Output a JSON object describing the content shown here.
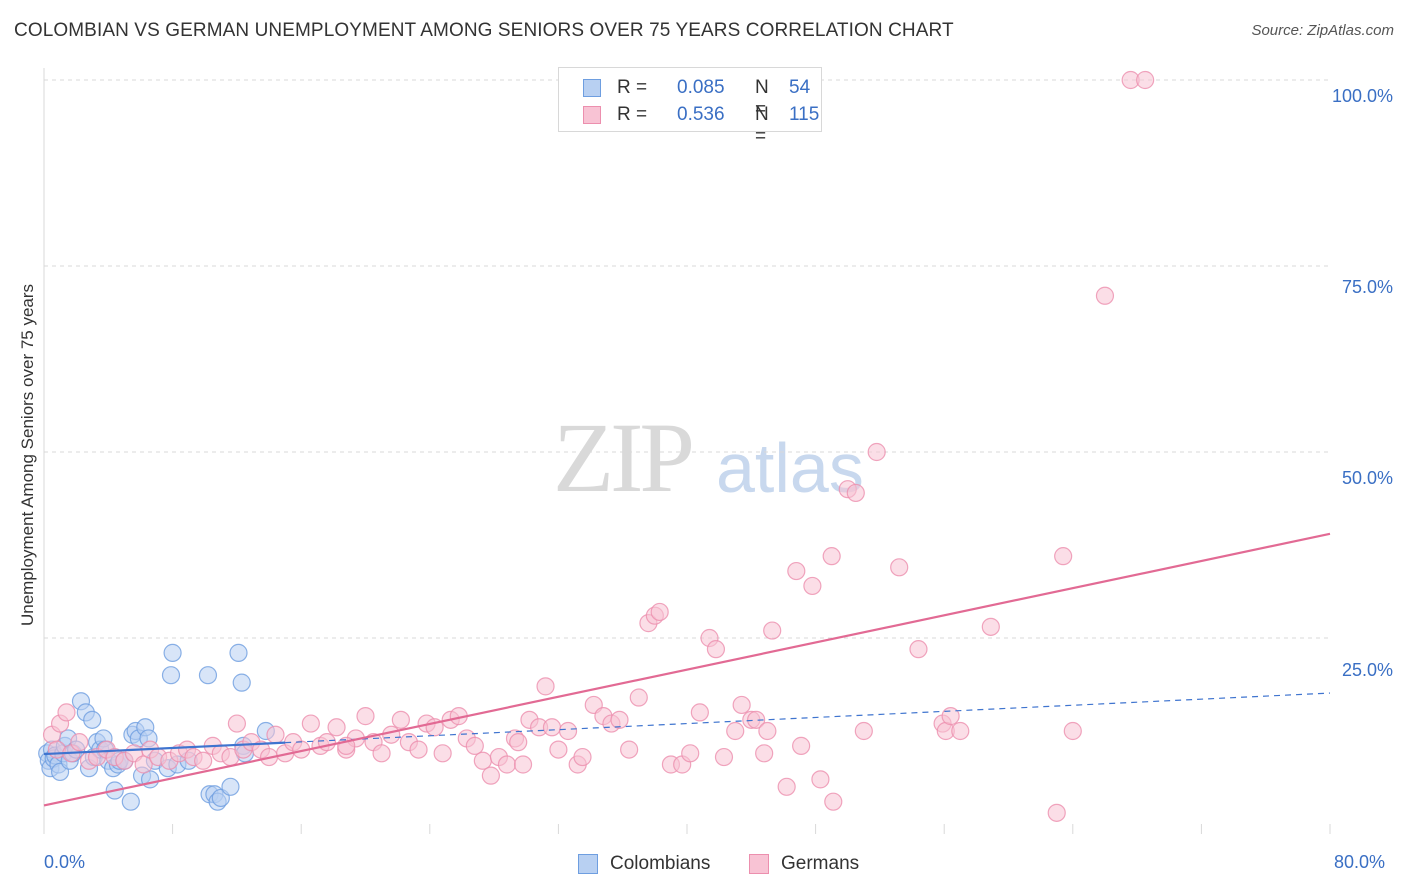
{
  "title": "COLOMBIAN VS GERMAN UNEMPLOYMENT AMONG SENIORS OVER 75 YEARS CORRELATION CHART",
  "source": "Source: ZipAtlas.com",
  "watermark": {
    "zip": "ZIP",
    "atlas": "atlas"
  },
  "stats": {
    "colombians": {
      "r_label": "R =",
      "r": "0.085",
      "n_label": "N =",
      "n": "54"
    },
    "germans": {
      "r_label": "R =",
      "r": "0.536",
      "n_label": "N =",
      "n": "115"
    }
  },
  "legend": {
    "colombians": "Colombians",
    "germans": "Germans"
  },
  "colors": {
    "blue_fill": "#b8d0f2",
    "blue_stroke": "#6e9ee0",
    "blue_line": "#3f74cf",
    "pink_fill": "#f8c3d4",
    "pink_stroke": "#ec8fae",
    "pink_line": "#e26a94",
    "grid": "#d9d9d9",
    "tick_text": "#3a6fc4"
  },
  "chart_data": {
    "type": "scatter",
    "title": "COLOMBIAN VS GERMAN UNEMPLOYMENT AMONG SENIORS OVER 75 YEARS CORRELATION CHART",
    "xlabel": "",
    "ylabel": "Unemployment Among Seniors over 75 years",
    "xlim": [
      0,
      80
    ],
    "ylim": [
      0,
      100
    ],
    "x_tick_labels": [
      "0.0%",
      "80.0%"
    ],
    "y_tick_labels": [
      "100.0%",
      "75.0%",
      "50.0%",
      "25.0%"
    ],
    "y_ticks": [
      100,
      75,
      50,
      25
    ],
    "x_gridlines": [
      0,
      8,
      16,
      24,
      32,
      40,
      48,
      56,
      64,
      72,
      80
    ],
    "grid": true,
    "legend_position": "bottom-center",
    "series": [
      {
        "name": "Colombians",
        "points": [
          [
            0.2,
            9.5
          ],
          [
            0.3,
            8.5
          ],
          [
            0.4,
            7.5
          ],
          [
            0.5,
            10
          ],
          [
            0.6,
            8.8
          ],
          [
            0.7,
            9.2
          ],
          [
            0.9,
            8
          ],
          [
            1.0,
            7
          ],
          [
            1.2,
            9.5
          ],
          [
            1.3,
            10.5
          ],
          [
            1.5,
            11.5
          ],
          [
            1.6,
            8.5
          ],
          [
            1.8,
            9.5
          ],
          [
            2.0,
            10
          ],
          [
            2.3,
            16.5
          ],
          [
            2.6,
            15
          ],
          [
            2.8,
            7.5
          ],
          [
            3.0,
            14
          ],
          [
            3.1,
            9
          ],
          [
            3.3,
            11
          ],
          [
            3.5,
            10
          ],
          [
            3.7,
            11.5
          ],
          [
            3.8,
            10
          ],
          [
            4.0,
            8.5
          ],
          [
            4.3,
            7.5
          ],
          [
            4.4,
            4.5
          ],
          [
            4.6,
            8
          ],
          [
            4.7,
            8.5
          ],
          [
            5.0,
            8.5
          ],
          [
            5.4,
            3
          ],
          [
            5.5,
            12
          ],
          [
            5.7,
            12.5
          ],
          [
            5.9,
            11.5
          ],
          [
            6.1,
            6.5
          ],
          [
            6.3,
            13
          ],
          [
            6.5,
            11.5
          ],
          [
            6.6,
            6
          ],
          [
            6.9,
            8.5
          ],
          [
            7.7,
            7.5
          ],
          [
            7.9,
            20
          ],
          [
            8.0,
            23
          ],
          [
            8.3,
            8
          ],
          [
            9.0,
            8.5
          ],
          [
            10.2,
            20
          ],
          [
            10.3,
            4
          ],
          [
            10.6,
            4
          ],
          [
            10.8,
            3
          ],
          [
            11.0,
            3.5
          ],
          [
            11.6,
            5
          ],
          [
            12.1,
            23
          ],
          [
            12.3,
            19
          ],
          [
            12.4,
            10.5
          ],
          [
            12.5,
            9.5
          ],
          [
            13.8,
            12.5
          ]
        ],
        "trend": {
          "solid_x": [
            0,
            15
          ],
          "dashed_x": [
            15,
            80
          ],
          "y_at_x0": 9.4,
          "y_at_x80": 17.6
        }
      },
      {
        "name": "Germans",
        "points": [
          [
            0.5,
            12
          ],
          [
            0.8,
            10
          ],
          [
            1.0,
            13.5
          ],
          [
            1.4,
            15
          ],
          [
            1.7,
            9.5
          ],
          [
            2.2,
            11
          ],
          [
            2.8,
            8.5
          ],
          [
            3.3,
            9
          ],
          [
            3.9,
            10
          ],
          [
            4.4,
            9
          ],
          [
            5.0,
            8.5
          ],
          [
            5.6,
            9.5
          ],
          [
            6.2,
            8
          ],
          [
            6.6,
            10
          ],
          [
            7.1,
            9
          ],
          [
            7.8,
            8.5
          ],
          [
            8.4,
            9.5
          ],
          [
            8.9,
            10
          ],
          [
            9.3,
            9
          ],
          [
            9.9,
            8.5
          ],
          [
            10.5,
            10.5
          ],
          [
            11.0,
            9.5
          ],
          [
            11.6,
            9
          ],
          [
            12.0,
            13.5
          ],
          [
            12.4,
            10
          ],
          [
            12.9,
            11
          ],
          [
            13.5,
            10
          ],
          [
            14.0,
            9
          ],
          [
            14.4,
            12
          ],
          [
            15.0,
            9.5
          ],
          [
            15.5,
            11
          ],
          [
            16.0,
            10
          ],
          [
            16.6,
            13.5
          ],
          [
            17.2,
            10.5
          ],
          [
            17.6,
            11
          ],
          [
            18.2,
            13
          ],
          [
            18.8,
            10
          ],
          [
            19.4,
            11.5
          ],
          [
            20.0,
            14.5
          ],
          [
            20.5,
            11
          ],
          [
            21.0,
            9.5
          ],
          [
            21.6,
            12
          ],
          [
            22.2,
            14
          ],
          [
            22.7,
            11
          ],
          [
            23.3,
            10
          ],
          [
            23.8,
            13.5
          ],
          [
            24.3,
            13
          ],
          [
            24.8,
            9.5
          ],
          [
            25.3,
            14
          ],
          [
            25.8,
            14.5
          ],
          [
            26.3,
            11.5
          ],
          [
            26.8,
            10.5
          ],
          [
            27.3,
            8.5
          ],
          [
            27.8,
            6.5
          ],
          [
            28.3,
            9
          ],
          [
            28.8,
            8
          ],
          [
            29.3,
            11.5
          ],
          [
            29.8,
            8
          ],
          [
            30.2,
            14
          ],
          [
            30.8,
            13
          ],
          [
            31.2,
            18.5
          ],
          [
            31.6,
            13
          ],
          [
            32.0,
            10
          ],
          [
            32.6,
            12.5
          ],
          [
            33.2,
            8
          ],
          [
            34.2,
            16
          ],
          [
            34.8,
            14.5
          ],
          [
            35.3,
            13.5
          ],
          [
            35.8,
            14
          ],
          [
            36.4,
            10
          ],
          [
            37.0,
            17
          ],
          [
            37.6,
            27
          ],
          [
            38.0,
            28
          ],
          [
            38.3,
            28.5
          ],
          [
            39.0,
            8
          ],
          [
            39.7,
            8
          ],
          [
            40.2,
            9.5
          ],
          [
            40.8,
            15
          ],
          [
            41.4,
            25
          ],
          [
            41.8,
            23.5
          ],
          [
            42.3,
            9
          ],
          [
            43.0,
            12.5
          ],
          [
            43.4,
            16
          ],
          [
            44.0,
            14
          ],
          [
            44.3,
            14
          ],
          [
            44.8,
            9.5
          ],
          [
            45.3,
            26
          ],
          [
            46.2,
            5
          ],
          [
            46.8,
            34
          ],
          [
            47.1,
            10.5
          ],
          [
            47.8,
            32
          ],
          [
            48.3,
            6
          ],
          [
            49.0,
            36
          ],
          [
            49.1,
            3
          ],
          [
            50.0,
            45
          ],
          [
            50.5,
            44.5
          ],
          [
            51.0,
            12.5
          ],
          [
            51.8,
            50
          ],
          [
            53.2,
            34.5
          ],
          [
            54.4,
            23.5
          ],
          [
            55.9,
            13.5
          ],
          [
            56.1,
            12.5
          ],
          [
            56.4,
            14.5
          ],
          [
            57.0,
            12.5
          ],
          [
            58.9,
            26.5
          ],
          [
            63.0,
            1.5
          ],
          [
            63.4,
            36
          ],
          [
            64.0,
            12.5
          ],
          [
            66.0,
            71
          ],
          [
            67.6,
            100
          ],
          [
            68.5,
            100
          ],
          [
            29.5,
            11
          ],
          [
            45.0,
            12.5
          ],
          [
            33.5,
            9
          ],
          [
            18.8,
            10.5
          ]
        ],
        "trend": {
          "solid_x": [
            0,
            80
          ],
          "y_at_x0": 2.5,
          "y_at_x80": 39
        }
      }
    ]
  }
}
